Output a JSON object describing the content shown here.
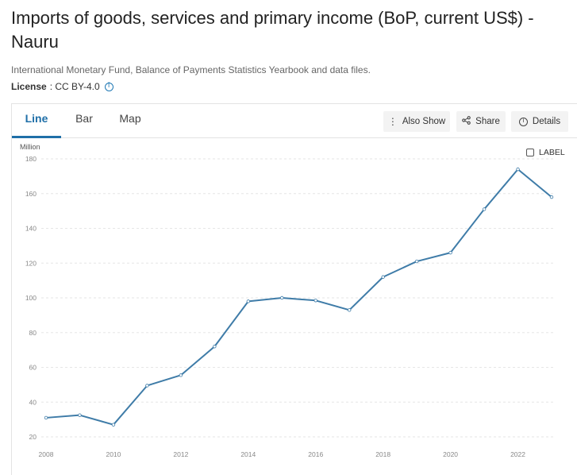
{
  "page": {
    "title": "Imports of goods, services and primary income (BoP, current US$) - Nauru",
    "source": "International Monetary Fund, Balance of Payments Statistics Yearbook and data files.",
    "license_label": "License",
    "license_value": ": CC BY-4.0",
    "info_icon": "info-circle-icon"
  },
  "tabs": [
    {
      "label": "Line",
      "active": true
    },
    {
      "label": "Bar",
      "active": false
    },
    {
      "label": "Map",
      "active": false
    }
  ],
  "toolbar": {
    "also_show": "Also Show",
    "share": "Share",
    "details": "Details"
  },
  "label_toggle": "LABEL",
  "colors": {
    "line": "#3f7ca8",
    "accent": "#1f6fa8",
    "grid": "#e6e6e6"
  },
  "chart_data": {
    "type": "line",
    "unit_label": "Million",
    "x": [
      2008,
      2009,
      2010,
      2011,
      2012,
      2013,
      2014,
      2015,
      2016,
      2017,
      2018,
      2019,
      2020,
      2021,
      2022,
      2023
    ],
    "series": [
      {
        "values": [
          31,
          32.5,
          27,
          49.5,
          55.5,
          72,
          98,
          100,
          98.5,
          93,
          112,
          121,
          126,
          151,
          174,
          158
        ]
      }
    ],
    "x_ticks": [
      2008,
      2010,
      2012,
      2014,
      2016,
      2018,
      2020,
      2022
    ],
    "y_ticks": [
      20,
      40,
      60,
      80,
      100,
      120,
      140,
      160,
      180
    ],
    "xlim": [
      2008,
      2023
    ],
    "ylim": [
      20,
      180
    ],
    "grid": "horizontal dashed"
  }
}
